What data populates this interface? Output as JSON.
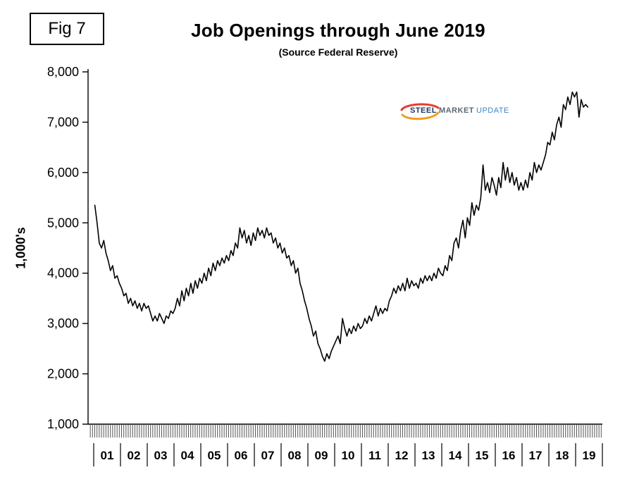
{
  "figure_label": "Fig 7",
  "title": "Job Openings through June 2019",
  "subtitle": "(Source Federal Reserve)",
  "y_axis_title": "1,000's",
  "logo": {
    "steel": "STEEL",
    "market": "MARKET",
    "update": "UPDATE",
    "swoosh_red": "#e63c2f",
    "swoosh_orange": "#f29c1f"
  },
  "chart_data": {
    "type": "line",
    "title": "Job Openings through June 2019",
    "subtitle": "(Source Federal Reserve)",
    "ylabel": "1,000's",
    "units": "thousands",
    "frequency": "monthly",
    "start": "2001-01",
    "end": "2019-06",
    "ylim": [
      1000,
      8000
    ],
    "y_tick_step": 1000,
    "y_ticks": [
      "8,000",
      "7,000",
      "6,000",
      "5,000",
      "4,000",
      "3,000",
      "2,000",
      "1,000"
    ],
    "x_tick_labels": [
      "01",
      "02",
      "03",
      "04",
      "05",
      "06",
      "07",
      "08",
      "09",
      "10",
      "11",
      "12",
      "13",
      "14",
      "15",
      "16",
      "17",
      "18",
      "19"
    ],
    "grid": false,
    "legend": "none",
    "line_color": "#000000",
    "values": [
      5350,
      5000,
      4600,
      4500,
      4650,
      4400,
      4250,
      4050,
      4150,
      3900,
      3950,
      3800,
      3700,
      3550,
      3600,
      3400,
      3500,
      3350,
      3450,
      3300,
      3400,
      3250,
      3400,
      3300,
      3350,
      3200,
      3050,
      3150,
      3050,
      3200,
      3100,
      3000,
      3150,
      3100,
      3250,
      3200,
      3300,
      3500,
      3350,
      3650,
      3450,
      3700,
      3550,
      3800,
      3600,
      3850,
      3700,
      3900,
      3800,
      4000,
      3850,
      4100,
      3950,
      4200,
      4050,
      4250,
      4150,
      4300,
      4200,
      4350,
      4250,
      4450,
      4350,
      4600,
      4500,
      4900,
      4700,
      4850,
      4600,
      4750,
      4550,
      4800,
      4650,
      4900,
      4750,
      4850,
      4700,
      4900,
      4750,
      4800,
      4600,
      4700,
      4500,
      4600,
      4400,
      4500,
      4300,
      4350,
      4150,
      4250,
      4000,
      4100,
      3800,
      3650,
      3450,
      3300,
      3100,
      2950,
      2750,
      2850,
      2600,
      2500,
      2350,
      2250,
      2400,
      2300,
      2450,
      2550,
      2650,
      2750,
      2600,
      3100,
      2900,
      2750,
      2900,
      2800,
      2950,
      2850,
      3000,
      2900,
      2950,
      3100,
      3000,
      3150,
      3050,
      3200,
      3350,
      3150,
      3300,
      3200,
      3300,
      3250,
      3450,
      3550,
      3700,
      3600,
      3750,
      3650,
      3800,
      3650,
      3900,
      3700,
      3850,
      3750,
      3800,
      3700,
      3900,
      3800,
      3950,
      3850,
      3950,
      3850,
      4000,
      3900,
      4100,
      4000,
      3950,
      4150,
      4050,
      4350,
      4250,
      4600,
      4700,
      4500,
      4850,
      5050,
      4700,
      5100,
      4950,
      5400,
      5150,
      5350,
      5250,
      5500,
      6150,
      5650,
      5800,
      5600,
      5900,
      5750,
      5550,
      5900,
      5700,
      6200,
      5850,
      6100,
      5800,
      6000,
      5750,
      5900,
      5650,
      5800,
      5650,
      5850,
      5700,
      6000,
      5850,
      6200,
      6000,
      6150,
      6050,
      6200,
      6350,
      6600,
      6550,
      6800,
      6650,
      6950,
      7100,
      6900,
      7350,
      7250,
      7500,
      7350,
      7600,
      7500,
      7600,
      7100,
      7450,
      7300,
      7350,
      7300
    ]
  }
}
